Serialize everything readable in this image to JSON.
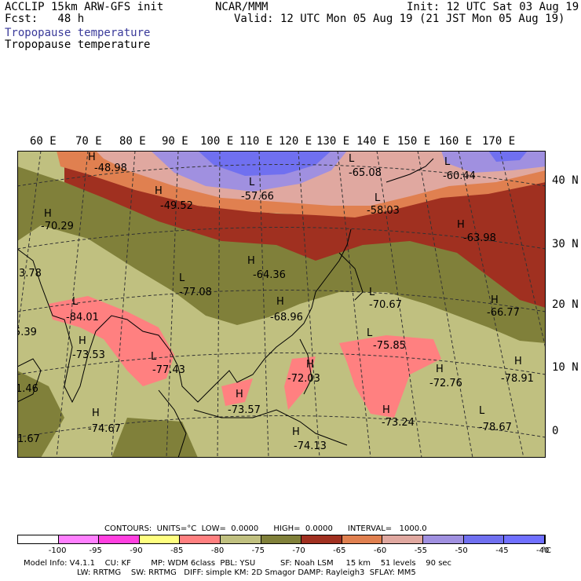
{
  "header": {
    "left_line1": "ACCLIP 15km ARW-GFS init",
    "left_line2": "Fcst:   48 h",
    "center_line1": "NCAR/MMM",
    "right_line1": "Init: 12 UTC Sat 03 Aug 19",
    "right_line2": "Valid: 12 UTC Mon 05 Aug 19 (21 JST Mon 05 Aug 19)",
    "field_label_blue": "Tropopause temperature",
    "field_label_black": "Tropopause temperature"
  },
  "map": {
    "lon_labels": [
      "60 E",
      "70 E",
      "80 E",
      "90 E",
      "100 E",
      "110 E",
      "120 E",
      "130 E",
      "140 E",
      "150 E",
      "160 E",
      "170 E"
    ],
    "lat_labels": [
      "40 N",
      "30 N",
      "20 N",
      "10 N",
      "0"
    ],
    "extrema": [
      {
        "type": "H",
        "value": "-48.98"
      },
      {
        "type": "H",
        "value": "-49.52"
      },
      {
        "type": "L",
        "value": "-57.66"
      },
      {
        "type": "L",
        "value": "-65.08"
      },
      {
        "type": "L",
        "value": "-60.44"
      },
      {
        "type": "L",
        "value": "-58.03"
      },
      {
        "type": "H",
        "value": "-63.98"
      },
      {
        "type": "H",
        "value": "-70.29"
      },
      {
        "type": "H",
        "value": "-64.36"
      },
      {
        "type": "L",
        "value": "-77.08"
      },
      {
        "type": "L",
        "value": "-84.01"
      },
      {
        "type": "H",
        "value": "-68.96"
      },
      {
        "type": "L",
        "value": "-70.67"
      },
      {
        "type": "H",
        "value": "-66.77"
      },
      {
        "type": "H",
        "value": "-73.53"
      },
      {
        "type": "L",
        "value": "-77.43"
      },
      {
        "type": "L",
        "value": "-75.85"
      },
      {
        "type": "H",
        "value": "-72.03"
      },
      {
        "type": "H",
        "value": "-72.76"
      },
      {
        "type": "H",
        "value": "-78.91"
      },
      {
        "type": "H",
        "value": "-73.57"
      },
      {
        "type": "H",
        "value": "-74.67"
      },
      {
        "type": "H",
        "value": "-73.24"
      },
      {
        "type": "L",
        "value": "-78.67"
      },
      {
        "type": "H",
        "value": "-74.13"
      },
      {
        "type": "",
        "value": "3.78"
      },
      {
        "type": "",
        "value": "5.39"
      },
      {
        "type": "",
        "value": "1.46"
      },
      {
        "type": "",
        "value": "1.67"
      }
    ]
  },
  "contours_line": "CONTOURS:  UNITS=°C  LOW=  0.0000      HIGH=  0.0000      INTERVAL=   1000.0",
  "colorbar": {
    "colors": [
      "#ffffff",
      "#ff80ff",
      "#ff40e0",
      "#ffff80",
      "#ff8080",
      "#c0c080",
      "#80803a",
      "#a03020",
      "#e08050",
      "#e0a8a0",
      "#a090e0",
      "#7070f0",
      "#7070ff"
    ],
    "labels": [
      "-100",
      "-95",
      "-90",
      "-85",
      "-80",
      "-75",
      "-70",
      "-65",
      "-60",
      "-55",
      "-50",
      "-45",
      "-40"
    ],
    "unit": "°C"
  },
  "footer": {
    "line1": "Model Info: V4.1.1    CU: KF        MP: WDM 6class  PBL: YSU          SF: Noah LSM     15 km    51 levels    90 sec",
    "line2": "LW: RRTMG    SW: RRTMG   DIFF: simple KM: 2D Smagor DAMP: Rayleigh3  SFLAY: MM5"
  }
}
